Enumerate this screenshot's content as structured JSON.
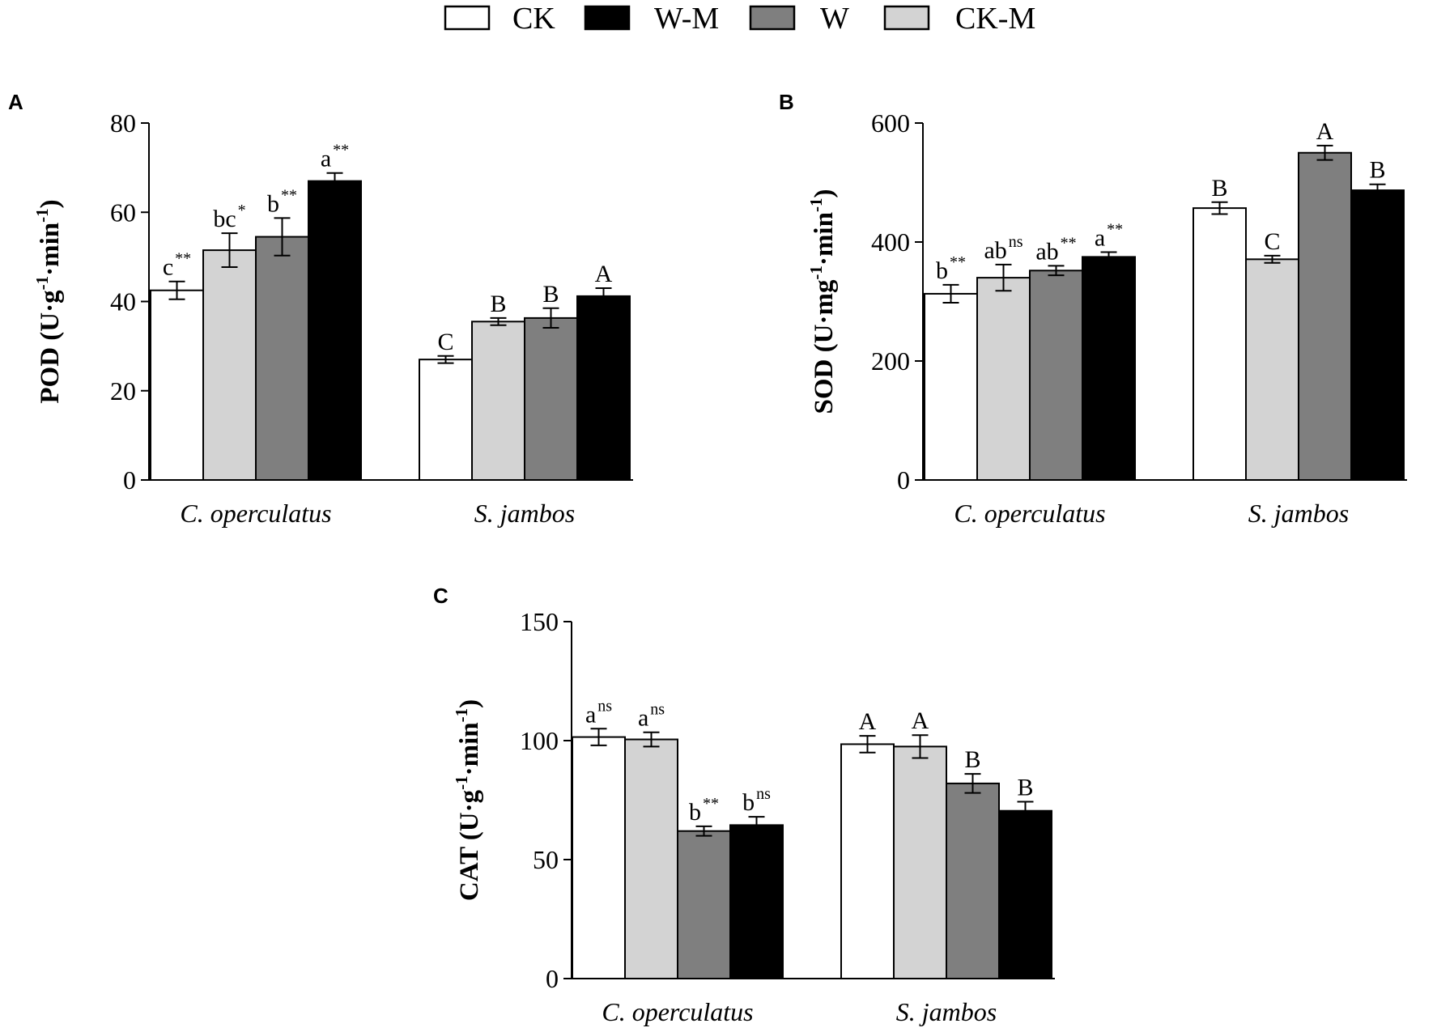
{
  "legend": {
    "items": [
      {
        "label": "CK",
        "color": "#ffffff"
      },
      {
        "label": "W-M",
        "color": "#000000"
      },
      {
        "label": "W",
        "color": "#7f7f7f"
      },
      {
        "label": "CK-M",
        "color": "#d3d3d3"
      }
    ]
  },
  "chart_data": [
    {
      "panel": "A",
      "type": "bar",
      "ylabel": {
        "base": "POD (U·g",
        "sup1": "-1",
        "mid": "·min",
        "sup2": "-1",
        "end": ")"
      },
      "categories": [
        "C. operculatus",
        "S. jambos"
      ],
      "ylim": [
        0,
        80
      ],
      "yticks": [
        0,
        20,
        40,
        60,
        80
      ],
      "series": [
        {
          "name": "CK",
          "color": "#ffffff",
          "values": [
            42.5,
            27.0
          ],
          "errors": [
            2.0,
            0.8
          ],
          "labels": [
            {
              "text": "c",
              "sup": "**"
            },
            {
              "text": "C",
              "sup": ""
            }
          ]
        },
        {
          "name": "CK-M",
          "color": "#d3d3d3",
          "values": [
            51.5,
            35.5
          ],
          "errors": [
            3.8,
            0.8
          ],
          "labels": [
            {
              "text": "bc",
              "sup": "*"
            },
            {
              "text": "B",
              "sup": ""
            }
          ]
        },
        {
          "name": "W",
          "color": "#7f7f7f",
          "values": [
            54.5,
            36.3
          ],
          "errors": [
            4.2,
            2.2
          ],
          "labels": [
            {
              "text": "b",
              "sup": "**"
            },
            {
              "text": "B",
              "sup": ""
            }
          ]
        },
        {
          "name": "W-M",
          "color": "#000000",
          "values": [
            67.0,
            41.2
          ],
          "errors": [
            1.8,
            1.8
          ],
          "labels": [
            {
              "text": "a",
              "sup": "**"
            },
            {
              "text": "A",
              "sup": ""
            }
          ]
        }
      ]
    },
    {
      "panel": "B",
      "type": "bar",
      "ylabel": {
        "base": "SOD (U·mg",
        "sup1": "-1",
        "mid": "·min",
        "sup2": "-1",
        "end": ")"
      },
      "categories": [
        "C. operculatus",
        "S. jambos"
      ],
      "ylim": [
        0,
        600
      ],
      "yticks": [
        0,
        200,
        400,
        600
      ],
      "series": [
        {
          "name": "CK",
          "color": "#ffffff",
          "values": [
            313,
            457
          ],
          "errors": [
            15,
            10
          ],
          "labels": [
            {
              "text": "b",
              "sup": "**"
            },
            {
              "text": "B",
              "sup": ""
            }
          ]
        },
        {
          "name": "CK-M",
          "color": "#d3d3d3",
          "values": [
            340,
            371
          ],
          "errors": [
            22,
            6
          ],
          "labels": [
            {
              "text": "ab",
              "sup": "ns"
            },
            {
              "text": "C",
              "sup": ""
            }
          ]
        },
        {
          "name": "W",
          "color": "#7f7f7f",
          "values": [
            352,
            550
          ],
          "errors": [
            8,
            12
          ],
          "labels": [
            {
              "text": "ab",
              "sup": "**"
            },
            {
              "text": "A",
              "sup": ""
            }
          ]
        },
        {
          "name": "W-M",
          "color": "#000000",
          "values": [
            375,
            487
          ],
          "errors": [
            8,
            10
          ],
          "labels": [
            {
              "text": "a",
              "sup": "**"
            },
            {
              "text": "B",
              "sup": ""
            }
          ]
        }
      ]
    },
    {
      "panel": "C",
      "type": "bar",
      "ylabel": {
        "base": "CAT (U·g",
        "sup1": "-1",
        "mid": "·min",
        "sup2": "-1",
        "end": ")"
      },
      "categories": [
        "C. operculatus",
        "S. jambos"
      ],
      "ylim": [
        0,
        150
      ],
      "yticks": [
        0,
        50,
        100,
        150
      ],
      "series": [
        {
          "name": "CK",
          "color": "#ffffff",
          "values": [
            101.5,
            98.5
          ],
          "errors": [
            3.5,
            3.5
          ],
          "labels": [
            {
              "text": "a",
              "sup": "ns"
            },
            {
              "text": "A",
              "sup": ""
            }
          ]
        },
        {
          "name": "CK-M",
          "color": "#d3d3d3",
          "values": [
            100.5,
            97.5
          ],
          "errors": [
            3.0,
            4.8
          ],
          "labels": [
            {
              "text": "a",
              "sup": "ns"
            },
            {
              "text": "A",
              "sup": ""
            }
          ]
        },
        {
          "name": "W",
          "color": "#7f7f7f",
          "values": [
            62.0,
            82.0
          ],
          "errors": [
            2.0,
            4.0
          ],
          "labels": [
            {
              "text": "b",
              "sup": "**"
            },
            {
              "text": "B",
              "sup": ""
            }
          ]
        },
        {
          "name": "W-M",
          "color": "#000000",
          "values": [
            64.5,
            70.5
          ],
          "errors": [
            3.5,
            3.8
          ],
          "labels": [
            {
              "text": "b",
              "sup": "ns"
            },
            {
              "text": "B",
              "sup": ""
            }
          ]
        }
      ]
    }
  ]
}
